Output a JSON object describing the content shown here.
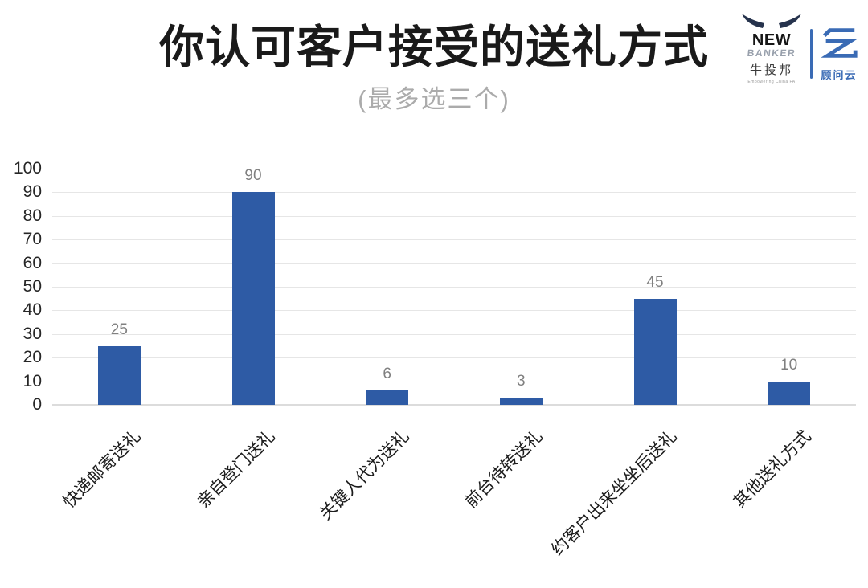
{
  "header": {
    "title": "你认可客户接受的送礼方式",
    "subtitle": "(最多选三个)"
  },
  "branding": {
    "newbanker": {
      "word1": "NEW",
      "word2": "BANKER",
      "cn": "牛投邦",
      "tagline": "Empowering China FA"
    },
    "guwenyun": {
      "cn": "顾问云"
    },
    "accent_blue": "#3a6bb5",
    "horn_color": "#26334d"
  },
  "chart_data": {
    "type": "bar",
    "title": "你认可客户接受的送礼方式",
    "subtitle": "(最多选三个)",
    "categories": [
      "快递邮寄送礼",
      "亲自登门送礼",
      "关键人代为送礼",
      "前台待转送礼",
      "约客户出来坐坐后送礼",
      "其他送礼方式"
    ],
    "values": [
      25,
      90,
      6,
      3,
      45,
      10
    ],
    "xlabel": "",
    "ylabel": "",
    "ylim": [
      0,
      100
    ],
    "ytick_step": 10,
    "grid": true,
    "legend": "none",
    "bar_color": "#2e5ba5",
    "value_label_color": "#808080",
    "tick_label_color": "#262626"
  }
}
